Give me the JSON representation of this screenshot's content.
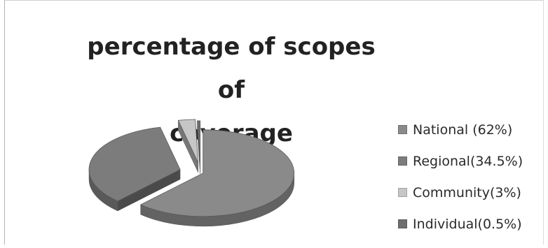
{
  "chart_data": {
    "type": "pie",
    "title": "percentage of scopes of coverage",
    "title_lines": [
      "percentage of scopes of",
      "coverage"
    ],
    "categories": [
      "National",
      "Regional",
      "Community",
      "Individual"
    ],
    "values": [
      62,
      34.5,
      3,
      0.5
    ],
    "legend_labels": [
      "National (62%)",
      "Regional(34.5%)",
      "Community(3%)",
      "Individual(0.5%)"
    ],
    "colors": [
      "#8a8a8a",
      "#7c7c7c",
      "#c6c6c6",
      "#6e6e6e"
    ],
    "legend_position": "right",
    "exploded": true,
    "style": "3d"
  }
}
